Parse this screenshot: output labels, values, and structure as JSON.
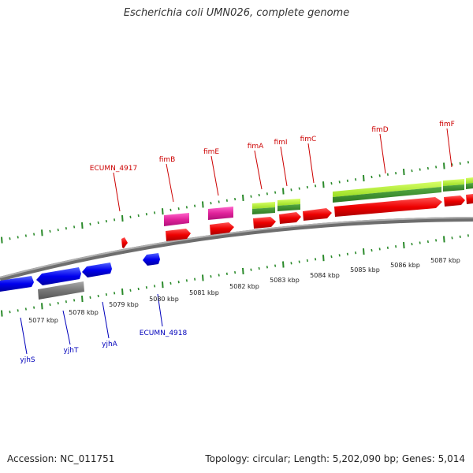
{
  "title": "Escherichia coli UMN026, complete genome",
  "footer": {
    "accession": "Accession: NC_011751",
    "summary": "Topology: circular; Length: 5,202,090 bp; Genes: 5,014"
  },
  "colors": {
    "forward_label": "#cc0000",
    "reverse_label": "#0000bb",
    "tick": "#2a8a2a",
    "backbone": "#8a8a8a"
  },
  "scale_labels": [
    "5077 kbp",
    "5078 kbp",
    "5079 kbp",
    "5080 kbp",
    "5081 kbp",
    "5082 kbp",
    "5083 kbp",
    "5084 kbp",
    "5085 kbp",
    "5086 kbp",
    "5087 kbp"
  ],
  "forward_genes": [
    "ECUMN_4917",
    "fimB",
    "fimE",
    "fimA",
    "fimI",
    "fimC",
    "fimD",
    "fimF"
  ],
  "reverse_genes": [
    "yjhS",
    "yjhT",
    "yjhA",
    "ECUMN_4918"
  ]
}
